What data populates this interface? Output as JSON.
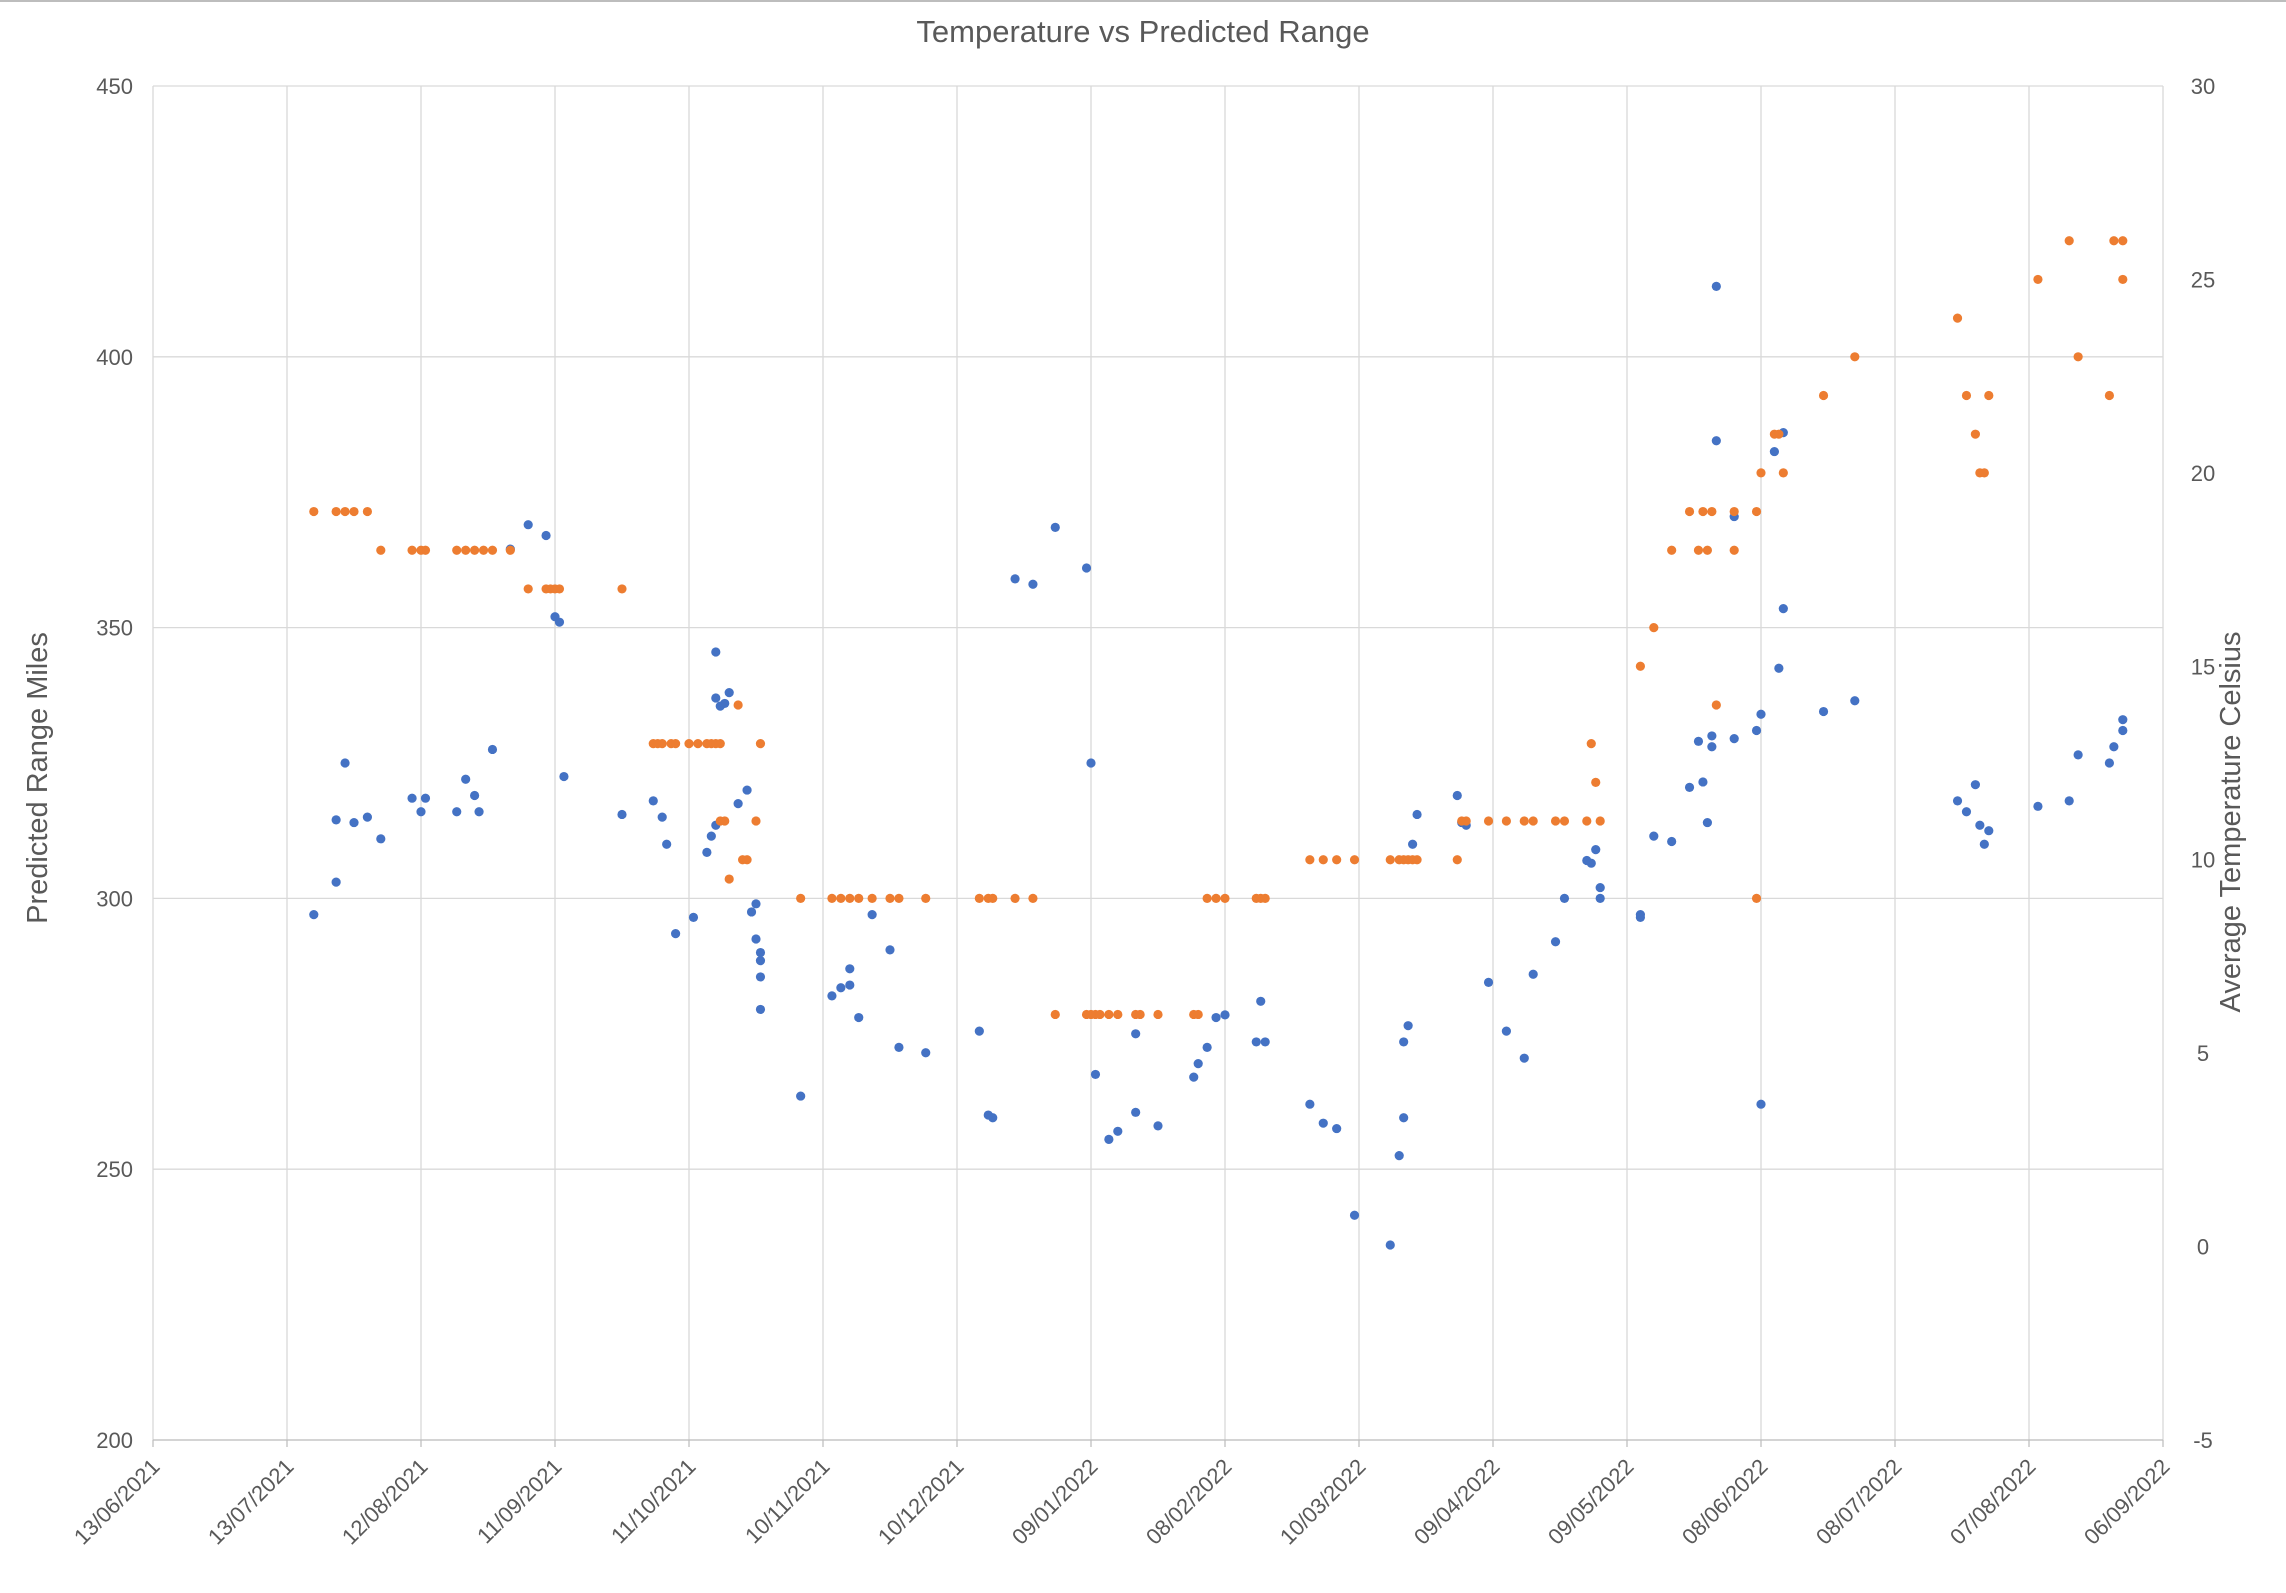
{
  "chart_data": {
    "type": "scatter",
    "title": "Temperature vs Predicted Range",
    "ylabel": "Predicted Range Miles",
    "y2label": "Average Temperature Celsius",
    "ylim": [
      200,
      450
    ],
    "y2lim": [
      -5,
      30
    ],
    "xlim": [
      "13/06/2021",
      "06/09/2022"
    ],
    "grid": true,
    "x_ticks": [
      "13/06/2021",
      "13/07/2021",
      "12/08/2021",
      "11/09/2021",
      "11/10/2021",
      "10/11/2021",
      "10/12/2021",
      "09/01/2022",
      "08/02/2022",
      "10/03/2022",
      "09/04/2022",
      "09/05/2022",
      "08/06/2022",
      "08/07/2022",
      "07/08/2022",
      "06/09/2022"
    ],
    "y_ticks": [
      200,
      250,
      300,
      350,
      400,
      450
    ],
    "y2_ticks": [
      -5,
      0,
      5,
      10,
      15,
      20,
      25,
      30
    ],
    "colors": {
      "range": "#4472c4",
      "temperature": "#ed7d31",
      "grid": "#d9d9d9",
      "text": "#595959"
    },
    "series": [
      {
        "axis": "left",
        "color": "#4472c4",
        "points": [
          [
            "2021-07-19",
            297
          ],
          [
            "2021-07-24",
            303
          ],
          [
            "2021-07-24",
            314.5
          ],
          [
            "2021-07-26",
            325
          ],
          [
            "2021-07-28",
            314
          ],
          [
            "2021-07-31",
            315
          ],
          [
            "2021-08-03",
            311
          ],
          [
            "2021-08-10",
            318.5
          ],
          [
            "2021-08-12",
            316
          ],
          [
            "2021-08-13",
            318.5
          ],
          [
            "2021-08-20",
            316
          ],
          [
            "2021-08-22",
            322
          ],
          [
            "2021-08-24",
            319
          ],
          [
            "2021-08-25",
            316
          ],
          [
            "2021-08-28",
            327.5
          ],
          [
            "2021-09-01",
            364.5
          ],
          [
            "2021-09-05",
            369
          ],
          [
            "2021-09-09",
            367
          ],
          [
            "2021-09-11",
            352
          ],
          [
            "2021-09-12",
            351
          ],
          [
            "2021-09-13",
            322.5
          ],
          [
            "2021-09-26",
            315.5
          ],
          [
            "2021-10-03",
            318
          ],
          [
            "2021-10-05",
            315
          ],
          [
            "2021-10-06",
            310
          ],
          [
            "2021-10-08",
            293.5
          ],
          [
            "2021-10-12",
            296.5
          ],
          [
            "2021-10-15",
            308.5
          ],
          [
            "2021-10-16",
            311.5
          ],
          [
            "2021-10-17",
            313.5
          ],
          [
            "2021-10-17",
            345.5
          ],
          [
            "2021-10-17",
            337
          ],
          [
            "2021-10-18",
            335.5
          ],
          [
            "2021-10-19",
            336
          ],
          [
            "2021-10-20",
            338
          ],
          [
            "2021-10-22",
            317.5
          ],
          [
            "2021-10-24",
            320
          ],
          [
            "2021-10-25",
            297.5
          ],
          [
            "2021-10-26",
            299
          ],
          [
            "2021-10-26",
            292.5
          ],
          [
            "2021-10-27",
            290
          ],
          [
            "2021-10-27",
            288.5
          ],
          [
            "2021-10-27",
            285.5
          ],
          [
            "2021-10-27",
            279.5
          ],
          [
            "2021-11-05",
            263.5
          ],
          [
            "2021-11-12",
            282
          ],
          [
            "2021-11-14",
            283.5
          ],
          [
            "2021-11-16",
            284
          ],
          [
            "2021-11-16",
            287
          ],
          [
            "2021-11-18",
            278
          ],
          [
            "2021-11-21",
            297
          ],
          [
            "2021-11-25",
            290.5
          ],
          [
            "2021-11-27",
            272.5
          ],
          [
            "2021-12-03",
            271.5
          ],
          [
            "2021-12-15",
            275.5
          ],
          [
            "2021-12-17",
            260
          ],
          [
            "2021-12-18",
            259.5
          ],
          [
            "2021-12-23",
            359
          ],
          [
            "2021-12-27",
            358
          ],
          [
            "2022-01-01",
            368.5
          ],
          [
            "2022-01-08",
            361
          ],
          [
            "2022-01-09",
            325
          ],
          [
            "2022-01-10",
            267.5
          ],
          [
            "2022-01-13",
            255.5
          ],
          [
            "2022-01-15",
            257
          ],
          [
            "2022-01-19",
            260.5
          ],
          [
            "2022-01-19",
            275
          ],
          [
            "2022-01-24",
            258
          ],
          [
            "2022-02-01",
            267
          ],
          [
            "2022-02-02",
            269.5
          ],
          [
            "2022-02-04",
            272.5
          ],
          [
            "2022-02-06",
            278
          ],
          [
            "2022-02-08",
            278.5
          ],
          [
            "2022-02-15",
            273.5
          ],
          [
            "2022-02-16",
            281
          ],
          [
            "2022-02-17",
            273.5
          ],
          [
            "2022-02-27",
            262
          ],
          [
            "2022-03-02",
            258.5
          ],
          [
            "2022-03-05",
            257.5
          ],
          [
            "2022-03-09",
            241.5
          ],
          [
            "2022-03-17",
            236
          ],
          [
            "2022-03-19",
            252.5
          ],
          [
            "2022-03-20",
            259.5
          ],
          [
            "2022-03-20",
            273.5
          ],
          [
            "2022-03-21",
            276.5
          ],
          [
            "2022-03-22",
            310
          ],
          [
            "2022-03-23",
            315.5
          ],
          [
            "2022-04-01",
            319
          ],
          [
            "2022-04-02",
            314
          ],
          [
            "2022-04-03",
            313.5
          ],
          [
            "2022-04-08",
            284.5
          ],
          [
            "2022-04-12",
            275.5
          ],
          [
            "2022-04-16",
            270.5
          ],
          [
            "2022-04-18",
            286
          ],
          [
            "2022-04-23",
            292
          ],
          [
            "2022-04-25",
            300
          ],
          [
            "2022-04-30",
            307
          ],
          [
            "2022-05-01",
            306.5
          ],
          [
            "2022-05-02",
            309
          ],
          [
            "2022-05-03",
            302
          ],
          [
            "2022-05-03",
            300
          ],
          [
            "2022-05-12",
            297
          ],
          [
            "2022-05-12",
            296.5
          ],
          [
            "2022-05-15",
            311.5
          ],
          [
            "2022-05-19",
            310.5
          ],
          [
            "2022-05-23",
            320.5
          ],
          [
            "2022-05-25",
            329
          ],
          [
            "2022-05-26",
            321.5
          ],
          [
            "2022-05-27",
            314
          ],
          [
            "2022-05-28",
            328
          ],
          [
            "2022-05-28",
            330
          ],
          [
            "2022-05-29",
            384.5
          ],
          [
            "2022-05-29",
            413
          ],
          [
            "2022-06-02",
            329.5
          ],
          [
            "2022-06-02",
            370.5
          ],
          [
            "2022-06-07",
            331
          ],
          [
            "2022-06-08",
            334
          ],
          [
            "2022-06-08",
            262
          ],
          [
            "2022-06-11",
            382.5
          ],
          [
            "2022-06-12",
            342.5
          ],
          [
            "2022-06-13",
            353.5
          ],
          [
            "2022-06-13",
            386
          ],
          [
            "2022-06-22",
            334.5
          ],
          [
            "2022-06-29",
            336.5
          ],
          [
            "2022-07-22",
            318
          ],
          [
            "2022-07-24",
            316
          ],
          [
            "2022-07-26",
            321
          ],
          [
            "2022-07-27",
            313.5
          ],
          [
            "2022-07-28",
            310
          ],
          [
            "2022-07-29",
            312.5
          ],
          [
            "2022-08-09",
            317
          ],
          [
            "2022-08-16",
            318
          ],
          [
            "2022-08-18",
            326.5
          ],
          [
            "2022-08-25",
            325
          ],
          [
            "2022-08-26",
            328
          ],
          [
            "2022-08-28",
            331
          ],
          [
            "2022-08-28",
            333
          ]
        ]
      },
      {
        "axis": "right",
        "color": "#ed7d31",
        "points": [
          [
            "2021-07-19",
            19
          ],
          [
            "2021-07-24",
            19
          ],
          [
            "2021-07-26",
            19
          ],
          [
            "2021-07-28",
            19
          ],
          [
            "2021-07-31",
            19
          ],
          [
            "2021-08-03",
            18
          ],
          [
            "2021-08-10",
            18
          ],
          [
            "2021-08-12",
            18
          ],
          [
            "2021-08-13",
            18
          ],
          [
            "2021-08-20",
            18
          ],
          [
            "2021-08-22",
            18
          ],
          [
            "2021-08-24",
            18
          ],
          [
            "2021-08-26",
            18
          ],
          [
            "2021-08-28",
            18
          ],
          [
            "2021-09-01",
            18
          ],
          [
            "2021-09-05",
            17
          ],
          [
            "2021-09-09",
            17
          ],
          [
            "2021-09-10",
            17
          ],
          [
            "2021-09-11",
            17
          ],
          [
            "2021-09-12",
            17
          ],
          [
            "2021-09-26",
            17
          ],
          [
            "2021-10-03",
            13
          ],
          [
            "2021-10-04",
            13
          ],
          [
            "2021-10-05",
            13
          ],
          [
            "2021-10-07",
            13
          ],
          [
            "2021-10-08",
            13
          ],
          [
            "2021-10-11",
            13
          ],
          [
            "2021-10-13",
            13
          ],
          [
            "2021-10-15",
            13
          ],
          [
            "2021-10-16",
            13
          ],
          [
            "2021-10-17",
            13
          ],
          [
            "2021-10-18",
            13
          ],
          [
            "2021-10-18",
            11
          ],
          [
            "2021-10-19",
            11
          ],
          [
            "2021-10-20",
            9.5
          ],
          [
            "2021-10-22",
            14
          ],
          [
            "2021-10-23",
            10
          ],
          [
            "2021-10-24",
            10
          ],
          [
            "2021-10-26",
            11
          ],
          [
            "2021-10-27",
            13
          ],
          [
            "2021-11-05",
            9
          ],
          [
            "2021-11-12",
            9
          ],
          [
            "2021-11-14",
            9
          ],
          [
            "2021-11-16",
            9
          ],
          [
            "2021-11-18",
            9
          ],
          [
            "2021-11-21",
            9
          ],
          [
            "2021-11-25",
            9
          ],
          [
            "2021-11-27",
            9
          ],
          [
            "2021-12-03",
            9
          ],
          [
            "2021-12-15",
            9
          ],
          [
            "2021-12-17",
            9
          ],
          [
            "2021-12-18",
            9
          ],
          [
            "2021-12-23",
            9
          ],
          [
            "2021-12-27",
            9
          ],
          [
            "2022-01-01",
            6
          ],
          [
            "2022-01-08",
            6
          ],
          [
            "2022-01-09",
            6
          ],
          [
            "2022-01-10",
            6
          ],
          [
            "2022-01-11",
            6
          ],
          [
            "2022-01-13",
            6
          ],
          [
            "2022-01-15",
            6
          ],
          [
            "2022-01-19",
            6
          ],
          [
            "2022-01-20",
            6
          ],
          [
            "2022-01-24",
            6
          ],
          [
            "2022-02-01",
            6
          ],
          [
            "2022-02-02",
            6
          ],
          [
            "2022-02-04",
            9
          ],
          [
            "2022-02-06",
            9
          ],
          [
            "2022-02-08",
            9
          ],
          [
            "2022-02-15",
            9
          ],
          [
            "2022-02-16",
            9
          ],
          [
            "2022-02-17",
            9
          ],
          [
            "2022-02-27",
            10
          ],
          [
            "2022-03-02",
            10
          ],
          [
            "2022-03-05",
            10
          ],
          [
            "2022-03-09",
            10
          ],
          [
            "2022-03-17",
            10
          ],
          [
            "2022-03-19",
            10
          ],
          [
            "2022-03-20",
            10
          ],
          [
            "2022-03-21",
            10
          ],
          [
            "2022-03-22",
            10
          ],
          [
            "2022-03-23",
            10
          ],
          [
            "2022-04-01",
            10
          ],
          [
            "2022-04-02",
            11
          ],
          [
            "2022-04-03",
            11
          ],
          [
            "2022-04-08",
            11
          ],
          [
            "2022-04-12",
            11
          ],
          [
            "2022-04-16",
            11
          ],
          [
            "2022-04-18",
            11
          ],
          [
            "2022-04-23",
            11
          ],
          [
            "2022-04-25",
            11
          ],
          [
            "2022-04-30",
            11
          ],
          [
            "2022-05-01",
            13
          ],
          [
            "2022-05-02",
            12
          ],
          [
            "2022-05-03",
            11
          ],
          [
            "2022-05-12",
            15
          ],
          [
            "2022-05-15",
            16
          ],
          [
            "2022-05-19",
            18
          ],
          [
            "2022-05-23",
            19
          ],
          [
            "2022-05-25",
            18
          ],
          [
            "2022-05-26",
            19
          ],
          [
            "2022-05-27",
            18
          ],
          [
            "2022-05-28",
            19
          ],
          [
            "2022-05-29",
            14
          ],
          [
            "2022-06-02",
            18
          ],
          [
            "2022-06-02",
            19
          ],
          [
            "2022-06-07",
            19
          ],
          [
            "2022-06-07",
            9
          ],
          [
            "2022-06-08",
            20
          ],
          [
            "2022-06-11",
            21
          ],
          [
            "2022-06-12",
            21
          ],
          [
            "2022-06-13",
            20
          ],
          [
            "2022-06-22",
            22
          ],
          [
            "2022-06-29",
            23
          ],
          [
            "2022-07-22",
            24
          ],
          [
            "2022-07-24",
            22
          ],
          [
            "2022-07-26",
            21
          ],
          [
            "2022-07-27",
            20
          ],
          [
            "2022-07-28",
            20
          ],
          [
            "2022-07-29",
            22
          ],
          [
            "2022-08-09",
            25
          ],
          [
            "2022-08-16",
            26
          ],
          [
            "2022-08-18",
            23
          ],
          [
            "2022-08-25",
            22
          ],
          [
            "2022-08-26",
            26
          ],
          [
            "2022-08-28",
            26
          ],
          [
            "2022-08-28",
            25
          ]
        ]
      }
    ]
  }
}
